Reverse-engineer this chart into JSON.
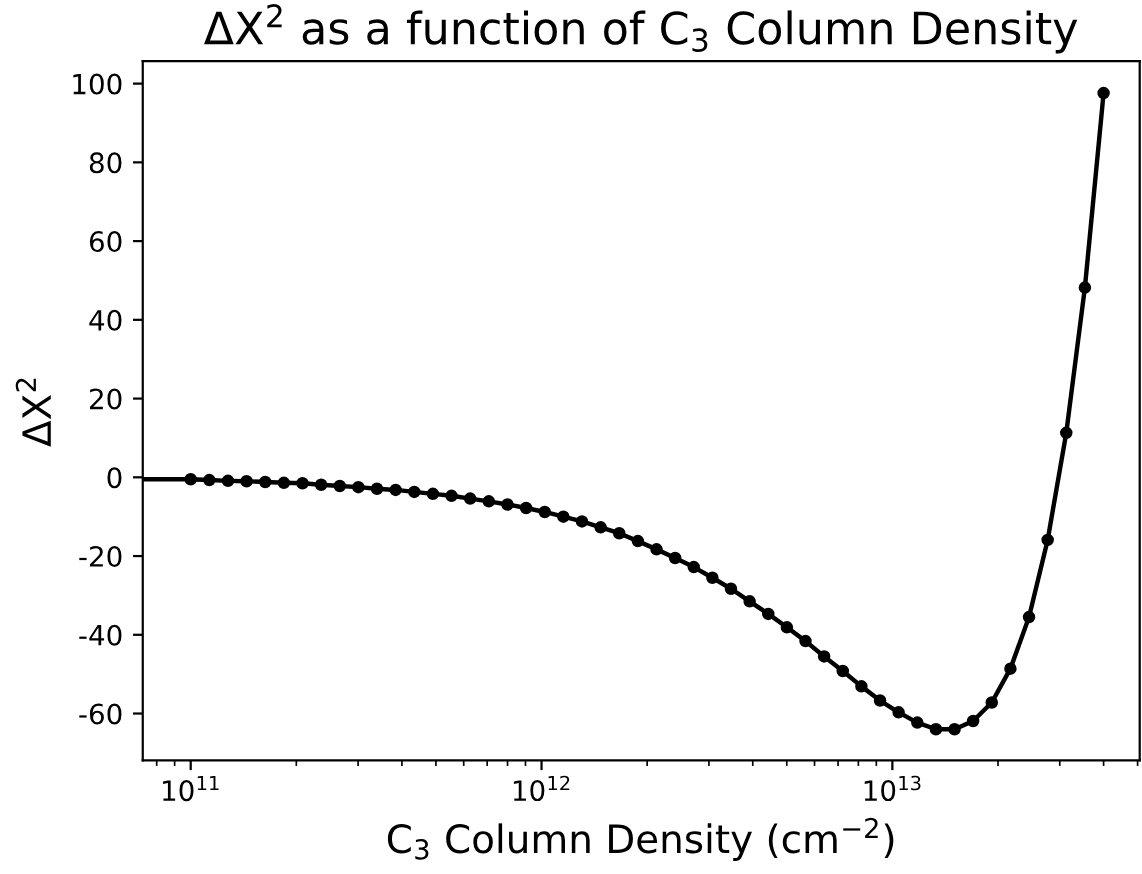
{
  "chart_data": {
    "type": "line",
    "title": "ΔX$^{2}$ as a function of C$_{3}$ Column Density",
    "xlabel": "C$_{3}$ Column Density (cm$^{−2}$)",
    "ylabel": "ΔX$^{2}$",
    "log": "x",
    "grid": false,
    "xlim": [
      73000000000.0,
      50700000000000.0
    ],
    "xticks": [
      {
        "value": 100000000000.0,
        "label": "10$^{11}$"
      },
      {
        "value": 1000000000000.0,
        "label": "10$^{12}$"
      },
      {
        "value": 10000000000000.0,
        "label": "10$^{13}$"
      }
    ],
    "ylim": [
      -71.9,
      105.7
    ],
    "yticks": [
      -60,
      -40,
      -20,
      0,
      20,
      40,
      60,
      80,
      100
    ],
    "series": [
      {
        "color": "#000000",
        "x": [
          73000000000.0,
          100000000000.0
        ],
        "values": [
          -0.5,
          -0.5
        ]
      },
      {
        "color": "#000000",
        "marker": "circle",
        "x": [
          100000000000.0,
          113000000000.0,
          127700000000.0,
          144300000000.0,
          163100000000.0,
          184300000000.0,
          208300000000.0,
          235400000000.0,
          266000000000.0,
          300600000000.0,
          339600000000.0,
          383800000000.0,
          433800000000.0,
          490100000000.0,
          553900000000.0,
          626000000000.0,
          707500000000.0,
          799500000000.0,
          903500000000.0,
          1021000000000.0,
          1154000000000.0,
          1304000000000.0,
          1474000000000.0,
          1665000000000.0,
          1882000000000.0,
          2127000000000.0,
          2403000000000.0,
          2716000000000.0,
          3069000000000.0,
          3467000000000.0,
          3919000000000.0,
          4428000000000.0,
          5004000000000.0,
          5655000000000.0,
          6390000000000.0,
          7221000000000.0,
          8161000000000.0,
          9222000000000.0,
          10420000000000.0,
          11780000000000.0,
          13310000000000.0,
          15040000000000.0,
          16990000000000.0,
          19200000000000.0,
          21700000000000.0,
          24520000000000.0,
          27710000000000.0,
          31310000000000.0,
          35380000000000.0,
          40000000000000.0
        ],
        "values": [
          -0.5,
          -0.7,
          -0.9,
          -1.0,
          -1.2,
          -1.4,
          -1.5,
          -1.9,
          -2.2,
          -2.5,
          -2.9,
          -3.2,
          -3.7,
          -4.2,
          -4.7,
          -5.4,
          -6.1,
          -6.9,
          -7.8,
          -8.8,
          -10.0,
          -11.2,
          -12.7,
          -14.2,
          -16.2,
          -18.3,
          -20.5,
          -22.8,
          -25.5,
          -28.3,
          -31.5,
          -34.7,
          -38.1,
          -41.6,
          -45.5,
          -49.2,
          -53.1,
          -56.7,
          -59.7,
          -62.3,
          -64.0,
          -64.0,
          -61.9,
          -57.2,
          -48.6,
          -35.5,
          -15.9,
          11.3,
          48.2,
          97.6
        ]
      }
    ]
  }
}
